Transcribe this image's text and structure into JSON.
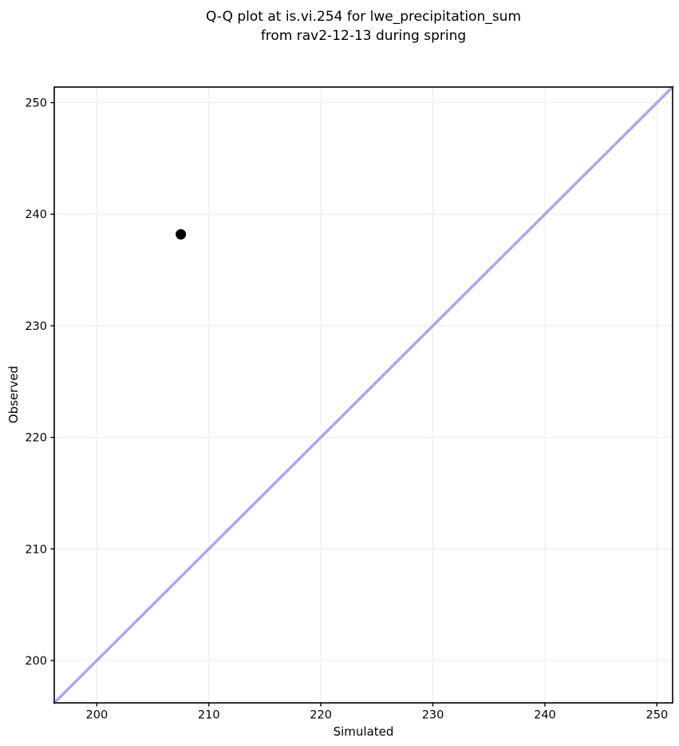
{
  "chart_data": {
    "type": "scatter",
    "title_line1": "Q-Q plot at is.vi.254 for lwe_precipitation_sum",
    "title_line2": "from rav2-12-13 during spring",
    "xlabel": "Simulated",
    "ylabel": "Observed",
    "xlim": [
      196.2,
      251.4
    ],
    "ylim": [
      196.2,
      251.4
    ],
    "xticks": [
      200,
      210,
      220,
      230,
      240,
      250
    ],
    "yticks": [
      200,
      210,
      220,
      230,
      240,
      250
    ],
    "points": [
      {
        "x": 207.5,
        "y": 238.2
      }
    ],
    "identity_line": {
      "x1": 196.2,
      "y1": 196.2,
      "x2": 251.4,
      "y2": 251.4
    },
    "grid": true,
    "legend": "none",
    "colors": {
      "point": "#000000",
      "identity_line": "#a8a8f0",
      "grid": "#ededed",
      "spine": "#000000",
      "text": "#000000",
      "background": "#ffffff"
    }
  }
}
